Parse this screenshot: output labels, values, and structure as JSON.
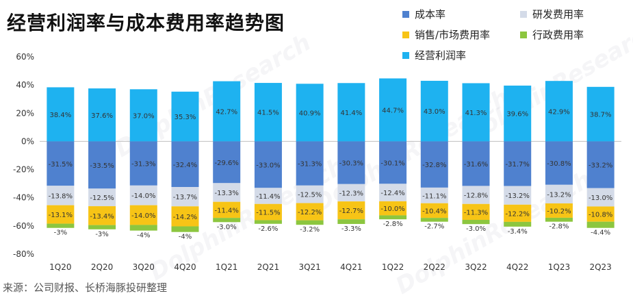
{
  "title": "经营利润率与成本费用率趋势图",
  "source": "来源：公司财报、长桥海豚投研整理",
  "colors": {
    "cost": "#4f81cf",
    "rd": "#d4dbe8",
    "sales": "#f7c416",
    "admin": "#8cc63f",
    "op": "#1eb2f0"
  },
  "legend": [
    {
      "key": "cost",
      "label": "成本率"
    },
    {
      "key": "rd",
      "label": "研发费用率"
    },
    {
      "key": "sales",
      "label": "销售/市场费用率"
    },
    {
      "key": "admin",
      "label": "行政费用率"
    },
    {
      "key": "op",
      "label": "经营利润率"
    }
  ],
  "chart_data": {
    "type": "bar",
    "stacked": true,
    "title": "经营利润率与成本费用率趋势图",
    "categories": [
      "1Q20",
      "2Q20",
      "3Q20",
      "4Q20",
      "1Q21",
      "2Q21",
      "3Q21",
      "4Q21",
      "1Q22",
      "2Q22",
      "3Q22",
      "4Q22",
      "1Q23",
      "2Q23"
    ],
    "ylim": [
      -80,
      60
    ],
    "yticks": [
      -80,
      -60,
      -40,
      -20,
      0,
      20,
      40,
      60
    ],
    "ytick_labels": [
      "-80%",
      "-60%",
      "-40%",
      "-20%",
      "0%",
      "20%",
      "40%",
      "60%"
    ],
    "grid": false,
    "legend_position": "top-right",
    "series": [
      {
        "key": "op",
        "name": "经营利润率",
        "values": [
          38.4,
          37.6,
          37.0,
          35.3,
          42.7,
          41.5,
          40.9,
          41.4,
          44.7,
          43.0,
          41.3,
          39.6,
          42.9,
          38.7
        ],
        "labels": [
          "38.4%",
          "37.6%",
          "37.0%",
          "35.3%",
          "42.7%",
          "41.5%",
          "40.9%",
          "41.4%",
          "44.7%",
          "43.0%",
          "41.3%",
          "39.6%",
          "42.9%",
          "38.7%"
        ]
      },
      {
        "key": "cost",
        "name": "成本率",
        "values": [
          -31.5,
          -33.5,
          -31.3,
          -32.4,
          -29.6,
          -33.0,
          -31.3,
          -30.3,
          -30.1,
          -32.8,
          -31.6,
          -31.7,
          -30.8,
          -33.2
        ],
        "labels": [
          "-31.5%",
          "-33.5%",
          "-31.3%",
          "-32.4%",
          "-29.6%",
          "-33.0%",
          "-31.3%",
          "-30.3%",
          "-30.1%",
          "-32.8%",
          "-31.6%",
          "-31.7%",
          "-30.8%",
          "-33.2%"
        ]
      },
      {
        "key": "rd",
        "name": "研发费用率",
        "values": [
          -13.8,
          -12.5,
          -14.0,
          -13.7,
          -13.3,
          -11.4,
          -12.5,
          -12.3,
          -12.4,
          -11.1,
          -12.8,
          -13.2,
          -13.2,
          -13.0
        ],
        "labels": [
          "-13.8%",
          "-12.5%",
          "-14.0%",
          "-13.7%",
          "-13.3%",
          "-11.4%",
          "-12.5%",
          "-12.3%",
          "-12.4%",
          "-11.1%",
          "-12.8%",
          "-13.2%",
          "-13.2%",
          "-13.0%"
        ]
      },
      {
        "key": "sales",
        "name": "销售/市场费用率",
        "values": [
          -13.1,
          -13.4,
          -14.0,
          -14.2,
          -11.4,
          -11.5,
          -12.2,
          -12.7,
          -10.0,
          -10.4,
          -11.3,
          -12.2,
          -10.2,
          -10.8
        ],
        "labels": [
          "-13.1%",
          "-13.4%",
          "-14.0%",
          "-14.2%",
          "-11.4%",
          "-11.5%",
          "-12.2%",
          "-12.7%",
          "-10.0%",
          "-10.4%",
          "-11.3%",
          "-12.2%",
          "-10.2%",
          "-10.8%"
        ]
      },
      {
        "key": "admin",
        "name": "行政费用率",
        "values": [
          -3,
          -3,
          -4,
          -4,
          -3.0,
          -2.6,
          -3.2,
          -3.3,
          -2.8,
          -2.7,
          -3.0,
          -3.4,
          -2.8,
          -4.4
        ],
        "labels": [
          "-3%",
          "-3%",
          "-4%",
          "-4%",
          "-3.0%",
          "-2.6%",
          "-3.2%",
          "-3.3%",
          "-2.8%",
          "-2.7%",
          "-3.0%",
          "-3.4%",
          "-2.8%",
          "-4.4%"
        ]
      }
    ]
  }
}
